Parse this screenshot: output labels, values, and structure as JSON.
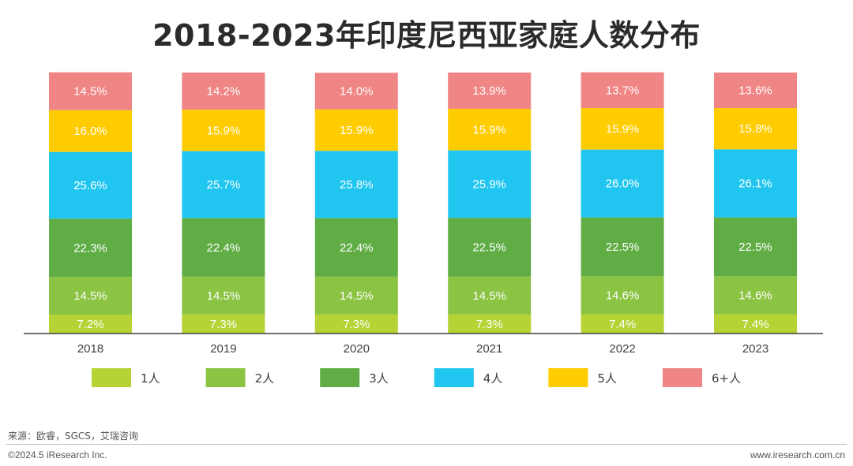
{
  "title": "2018-2023年印度尼西亚家庭人数分布",
  "chart_data": {
    "type": "bar",
    "stacked": true,
    "title": "2018-2023年印度尼西亚家庭人数分布",
    "categories": [
      "2018",
      "2019",
      "2020",
      "2021",
      "2022",
      "2023"
    ],
    "series": [
      {
        "name": "1人",
        "color": "#b5d334",
        "values": [
          7.2,
          7.3,
          7.3,
          7.3,
          7.4,
          7.4
        ],
        "labels": [
          "7.2%",
          "7.3%",
          "7.3%",
          "7.3%",
          "7.4%",
          "7.4%"
        ]
      },
      {
        "name": "2人",
        "color": "#8bc342",
        "values": [
          14.5,
          14.5,
          14.5,
          14.5,
          14.6,
          14.6
        ],
        "labels": [
          "14.5%",
          "14.5%",
          "14.5%",
          "14.5%",
          "14.6%",
          "14.6%"
        ]
      },
      {
        "name": "3人",
        "color": "#60ad46",
        "values": [
          22.3,
          22.4,
          22.4,
          22.5,
          22.5,
          22.5
        ],
        "labels": [
          "22.3%",
          "22.4%",
          "22.4%",
          "22.5%",
          "22.5%",
          "22.5%"
        ]
      },
      {
        "name": "4人",
        "color": "#20c6f0",
        "values": [
          25.6,
          25.7,
          25.8,
          25.9,
          26.0,
          26.1
        ],
        "labels": [
          "25.6%",
          "25.7%",
          "25.8%",
          "25.9%",
          "26.0%",
          "26.1%"
        ]
      },
      {
        "name": "5人",
        "color": "#ffcc00",
        "values": [
          16.0,
          15.9,
          15.9,
          15.9,
          15.9,
          15.8
        ],
        "labels": [
          "16.0%",
          "15.9%",
          "15.9%",
          "15.9%",
          "15.9%",
          "15.8%"
        ]
      },
      {
        "name": "6+人",
        "color": "#f08585",
        "values": [
          14.5,
          14.2,
          14.0,
          13.9,
          13.7,
          13.6
        ],
        "labels": [
          "14.5%",
          "14.2%",
          "14.0%",
          "13.9%",
          "13.7%",
          "13.6%"
        ]
      }
    ],
    "ylim": [
      0,
      100
    ],
    "legend_position": "bottom",
    "grid": false
  },
  "source": "来源：欧睿，SGCS，艾瑞咨询",
  "copyright": "©2024.5 iResearch Inc.",
  "website": "www.iresearch.com.cn"
}
